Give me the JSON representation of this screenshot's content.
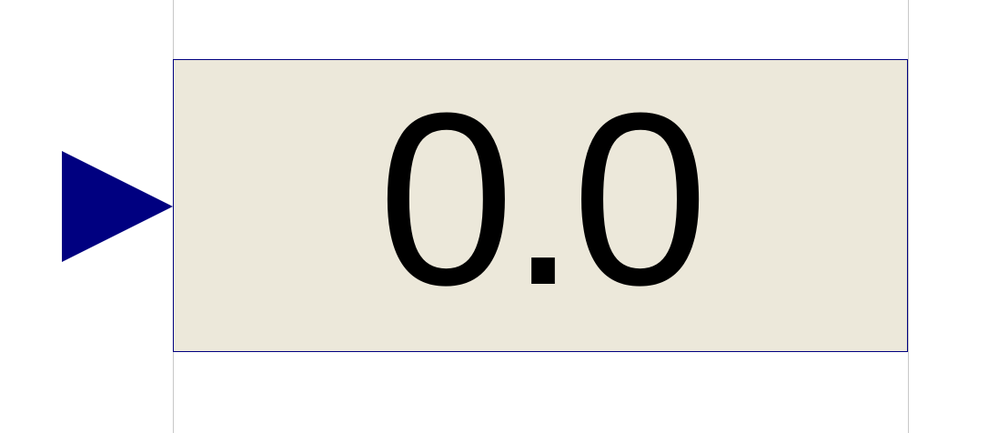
{
  "display": {
    "value": "0.0"
  },
  "colors": {
    "port_fill": "#000080",
    "box_fill": "#ece8da",
    "box_border": "#000080",
    "guide_line": "#c8c8c8",
    "text": "#000000"
  },
  "icons": {
    "input_port": "triangle-right-icon"
  }
}
